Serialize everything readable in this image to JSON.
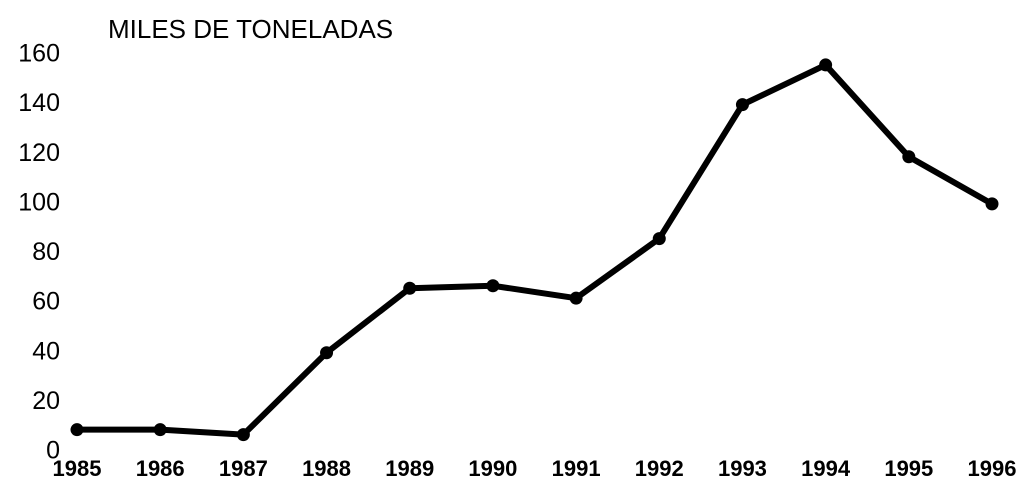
{
  "chart_data": {
    "type": "line",
    "title": "MILES DE TONELADAS",
    "x": [
      1985,
      1986,
      1987,
      1988,
      1989,
      1990,
      1991,
      1992,
      1993,
      1994,
      1995,
      1996
    ],
    "series": [
      {
        "name": "Miles de toneladas",
        "color": "#000000",
        "values": [
          9,
          9,
          7,
          40,
          66,
          67,
          62,
          86,
          140,
          156,
          119,
          100
        ]
      }
    ],
    "xlim": [
      1985,
      1996
    ],
    "xticks": [
      1985,
      1986,
      1987,
      1988,
      1989,
      1990,
      1991,
      1992,
      1993,
      1994,
      1995,
      1996
    ],
    "ylim": [
      0,
      160
    ],
    "yticks": [
      0,
      20,
      40,
      60,
      80,
      100,
      120,
      140,
      160
    ],
    "grid": false
  }
}
